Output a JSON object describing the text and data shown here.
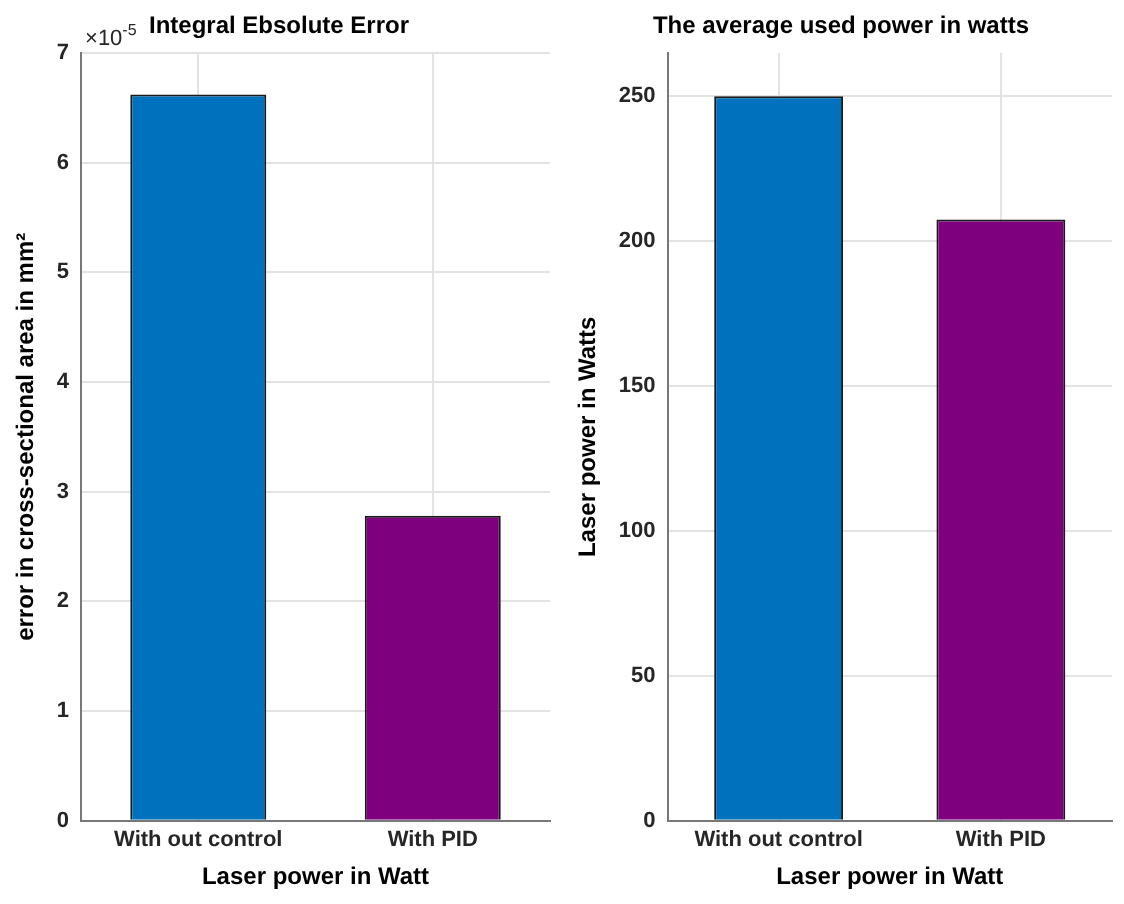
{
  "chart_data": [
    {
      "type": "bar",
      "title": "Integral Ebsolute Error",
      "xlabel": "Laser power in Watt",
      "ylabel": "error in cross-sectional area in mm²",
      "categories": [
        "With out control",
        "With PID"
      ],
      "values": [
        6.62,
        2.78
      ],
      "colors": [
        "#0072bd",
        "#7e007e"
      ],
      "ylim": [
        0,
        7
      ],
      "yticks": [
        0,
        1,
        2,
        3,
        4,
        5,
        6,
        7
      ],
      "annotations": [
        "×10$^{-5}$"
      ],
      "grid": true,
      "legend": false
    },
    {
      "type": "bar",
      "title": "The average used power in watts",
      "xlabel": "Laser power in Watt",
      "ylabel": "Laser power in Watts",
      "categories": [
        "With out control",
        "With PID"
      ],
      "values": [
        250,
        207.5
      ],
      "colors": [
        "#0072bd",
        "#7e007e"
      ],
      "ylim": [
        0,
        265
      ],
      "yticks": [
        0,
        50,
        100,
        150,
        200,
        250
      ],
      "grid": true,
      "legend": false
    }
  ]
}
